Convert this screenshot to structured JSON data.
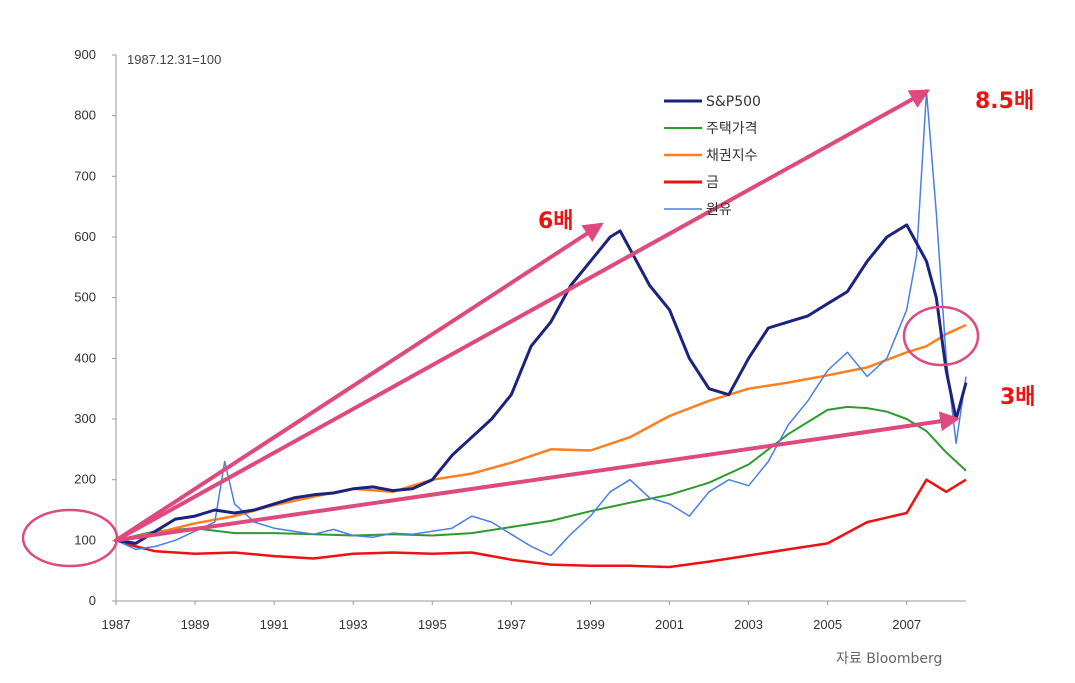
{
  "chart_data": {
    "type": "line",
    "subtitle": "1987.12.31=100",
    "source": "자료 Bloomberg",
    "ylim": [
      0,
      900
    ],
    "xlim": [
      1987,
      2008.5
    ],
    "y_ticks": [
      "0",
      "100",
      "200",
      "300",
      "400",
      "500",
      "600",
      "700",
      "800",
      "900"
    ],
    "x_ticks": [
      "1987",
      "1989",
      "1991",
      "1993",
      "1995",
      "1997",
      "1999",
      "2001",
      "2003",
      "2005",
      "2007"
    ],
    "colors": {
      "sp500": "#1c237d",
      "housing": "#2e9a2e",
      "bonds": "#ff7f1e",
      "gold": "#ee1111",
      "oil": "#4a7fe6",
      "annotation": "#de4a7e"
    },
    "series": [
      {
        "name": "S&P500",
        "key": "sp500",
        "points": [
          [
            1987.0,
            100
          ],
          [
            1987.5,
            95
          ],
          [
            1988.0,
            115
          ],
          [
            1988.5,
            135
          ],
          [
            1989.0,
            140
          ],
          [
            1989.5,
            150
          ],
          [
            1990.0,
            145
          ],
          [
            1990.5,
            150
          ],
          [
            1991.0,
            160
          ],
          [
            1991.5,
            170
          ],
          [
            1992.0,
            175
          ],
          [
            1992.5,
            178
          ],
          [
            1993.0,
            185
          ],
          [
            1993.5,
            188
          ],
          [
            1994.0,
            182
          ],
          [
            1994.5,
            185
          ],
          [
            1995.0,
            200
          ],
          [
            1995.5,
            240
          ],
          [
            1996.0,
            270
          ],
          [
            1996.5,
            300
          ],
          [
            1997.0,
            340
          ],
          [
            1997.5,
            420
          ],
          [
            1998.0,
            460
          ],
          [
            1998.5,
            520
          ],
          [
            1999.0,
            560
          ],
          [
            1999.5,
            600
          ],
          [
            1999.75,
            610
          ],
          [
            2000.0,
            580
          ],
          [
            2000.5,
            520
          ],
          [
            2001.0,
            480
          ],
          [
            2001.5,
            400
          ],
          [
            2002.0,
            350
          ],
          [
            2002.5,
            340
          ],
          [
            2003.0,
            400
          ],
          [
            2003.5,
            450
          ],
          [
            2004.0,
            460
          ],
          [
            2004.5,
            470
          ],
          [
            2005.0,
            490
          ],
          [
            2005.5,
            510
          ],
          [
            2006.0,
            560
          ],
          [
            2006.5,
            600
          ],
          [
            2007.0,
            620
          ],
          [
            2007.5,
            560
          ],
          [
            2007.75,
            500
          ],
          [
            2008.0,
            380
          ],
          [
            2008.25,
            300
          ],
          [
            2008.5,
            360
          ]
        ]
      },
      {
        "name": "주택가격",
        "key": "housing",
        "points": [
          [
            1987.0,
            100
          ],
          [
            1988.0,
            115
          ],
          [
            1989.0,
            120
          ],
          [
            1990.0,
            112
          ],
          [
            1991.0,
            112
          ],
          [
            1992.0,
            110
          ],
          [
            1993.0,
            108
          ],
          [
            1994.0,
            110
          ],
          [
            1995.0,
            108
          ],
          [
            1996.0,
            112
          ],
          [
            1997.0,
            122
          ],
          [
            1998.0,
            132
          ],
          [
            1999.0,
            148
          ],
          [
            2000.0,
            162
          ],
          [
            2001.0,
            175
          ],
          [
            2002.0,
            195
          ],
          [
            2003.0,
            225
          ],
          [
            2004.0,
            275
          ],
          [
            2005.0,
            315
          ],
          [
            2005.5,
            320
          ],
          [
            2006.0,
            318
          ],
          [
            2006.5,
            312
          ],
          [
            2007.0,
            300
          ],
          [
            2007.5,
            280
          ],
          [
            2008.0,
            245
          ],
          [
            2008.5,
            215
          ]
        ]
      },
      {
        "name": "채권지수",
        "key": "bonds",
        "points": [
          [
            1987.0,
            100
          ],
          [
            1988.0,
            112
          ],
          [
            1989.0,
            128
          ],
          [
            1990.0,
            140
          ],
          [
            1991.0,
            158
          ],
          [
            1992.0,
            172
          ],
          [
            1993.0,
            185
          ],
          [
            1994.0,
            180
          ],
          [
            1995.0,
            200
          ],
          [
            1996.0,
            210
          ],
          [
            1997.0,
            228
          ],
          [
            1998.0,
            250
          ],
          [
            1999.0,
            248
          ],
          [
            2000.0,
            270
          ],
          [
            2001.0,
            305
          ],
          [
            2002.0,
            330
          ],
          [
            2003.0,
            350
          ],
          [
            2004.0,
            360
          ],
          [
            2005.0,
            372
          ],
          [
            2006.0,
            385
          ],
          [
            2007.0,
            410
          ],
          [
            2007.5,
            420
          ],
          [
            2008.0,
            440
          ],
          [
            2008.5,
            455
          ]
        ]
      },
      {
        "name": "금",
        "key": "gold",
        "points": [
          [
            1987.0,
            100
          ],
          [
            1987.5,
            90
          ],
          [
            1988.0,
            82
          ],
          [
            1989.0,
            78
          ],
          [
            1990.0,
            80
          ],
          [
            1991.0,
            74
          ],
          [
            1992.0,
            70
          ],
          [
            1993.0,
            78
          ],
          [
            1994.0,
            80
          ],
          [
            1995.0,
            78
          ],
          [
            1996.0,
            80
          ],
          [
            1997.0,
            68
          ],
          [
            1998.0,
            60
          ],
          [
            1999.0,
            58
          ],
          [
            2000.0,
            58
          ],
          [
            2001.0,
            56
          ],
          [
            2002.0,
            65
          ],
          [
            2003.0,
            75
          ],
          [
            2004.0,
            85
          ],
          [
            2005.0,
            95
          ],
          [
            2006.0,
            130
          ],
          [
            2007.0,
            145
          ],
          [
            2007.5,
            200
          ],
          [
            2008.0,
            180
          ],
          [
            2008.5,
            200
          ]
        ]
      },
      {
        "name": "원유",
        "key": "oil",
        "points": [
          [
            1987.0,
            100
          ],
          [
            1987.5,
            85
          ],
          [
            1988.0,
            90
          ],
          [
            1988.5,
            100
          ],
          [
            1989.0,
            115
          ],
          [
            1989.5,
            130
          ],
          [
            1989.75,
            230
          ],
          [
            1990.0,
            160
          ],
          [
            1990.5,
            130
          ],
          [
            1991.0,
            120
          ],
          [
            1991.5,
            115
          ],
          [
            1992.0,
            110
          ],
          [
            1992.5,
            118
          ],
          [
            1993.0,
            108
          ],
          [
            1993.5,
            105
          ],
          [
            1994.0,
            112
          ],
          [
            1994.5,
            110
          ],
          [
            1995.0,
            115
          ],
          [
            1995.5,
            120
          ],
          [
            1996.0,
            140
          ],
          [
            1996.5,
            130
          ],
          [
            1997.0,
            110
          ],
          [
            1997.5,
            90
          ],
          [
            1998.0,
            75
          ],
          [
            1998.5,
            110
          ],
          [
            1999.0,
            140
          ],
          [
            1999.5,
            180
          ],
          [
            2000.0,
            200
          ],
          [
            2000.5,
            170
          ],
          [
            2001.0,
            160
          ],
          [
            2001.5,
            140
          ],
          [
            2002.0,
            180
          ],
          [
            2002.5,
            200
          ],
          [
            2003.0,
            190
          ],
          [
            2003.5,
            230
          ],
          [
            2004.0,
            290
          ],
          [
            2004.5,
            330
          ],
          [
            2005.0,
            380
          ],
          [
            2005.5,
            410
          ],
          [
            2006.0,
            370
          ],
          [
            2006.5,
            400
          ],
          [
            2007.0,
            480
          ],
          [
            2007.25,
            570
          ],
          [
            2007.5,
            840
          ],
          [
            2007.75,
            640
          ],
          [
            2008.0,
            400
          ],
          [
            2008.25,
            260
          ],
          [
            2008.5,
            370
          ]
        ]
      }
    ],
    "annotations": [
      {
        "label": "6배",
        "x": 1999.25,
        "y": 620
      },
      {
        "label": "8.5배",
        "x": 2007.5,
        "y": 840
      },
      {
        "label": "3배",
        "x": 2008.25,
        "y": 300
      }
    ],
    "arrows": [
      {
        "from": [
          1987,
          100
        ],
        "to": [
          1999.25,
          620
        ]
      },
      {
        "from": [
          1987,
          100
        ],
        "to": [
          2007.5,
          840
        ]
      },
      {
        "from": [
          1987,
          100
        ],
        "to": [
          2008.25,
          300
        ]
      }
    ]
  }
}
